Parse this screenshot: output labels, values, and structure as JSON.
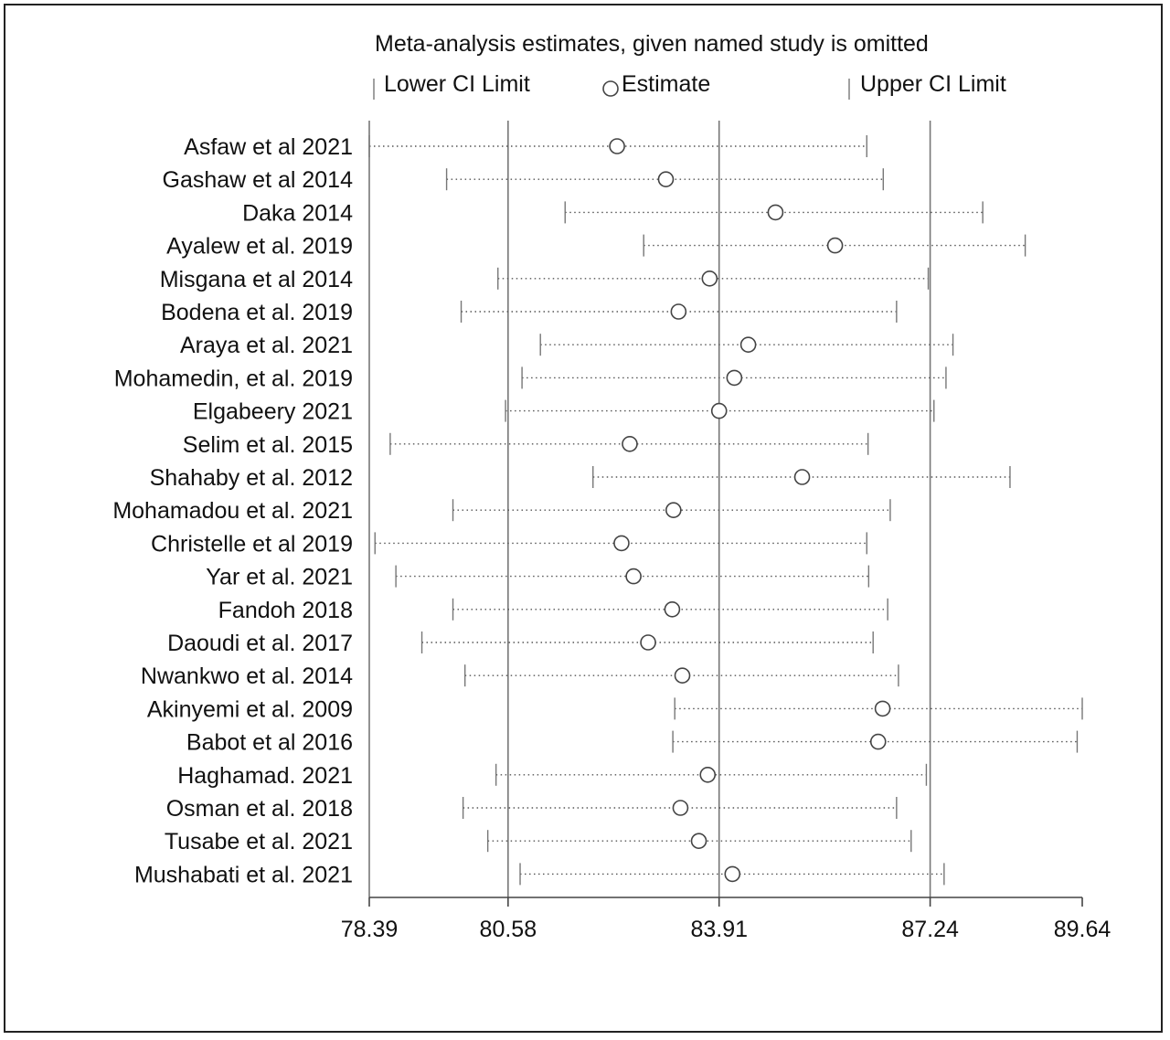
{
  "chart_data": {
    "type": "scatter",
    "title": "Meta-analysis estimates, given named study is omitted",
    "legend": {
      "lower": "Lower CI Limit",
      "estimate": "Estimate",
      "upper": "Upper CI Limit",
      "placement": "top"
    },
    "xlim": [
      78.39,
      89.64
    ],
    "ticks": [
      {
        "value": 78.39,
        "label": "78.39"
      },
      {
        "value": 80.58,
        "label": "80.58"
      },
      {
        "value": 83.91,
        "label": "83.91"
      },
      {
        "value": 87.24,
        "label": "87.24"
      },
      {
        "value": 89.64,
        "label": "89.64"
      }
    ],
    "reference_lines": [
      80.58,
      83.91,
      87.24
    ],
    "grid": false,
    "studies": [
      {
        "label": "Asfaw et al 2021",
        "lower": 78.39,
        "estimate": 82.3,
        "upper": 86.24
      },
      {
        "label": "Gashaw et al 2014",
        "lower": 79.61,
        "estimate": 83.07,
        "upper": 86.5
      },
      {
        "label": "Daka 2014",
        "lower": 81.48,
        "estimate": 84.8,
        "upper": 88.07
      },
      {
        "label": "Ayalew et al.  2019",
        "lower": 82.72,
        "estimate": 85.74,
        "upper": 88.74
      },
      {
        "label": "Misgana et al  2014",
        "lower": 80.42,
        "estimate": 83.76,
        "upper": 87.21
      },
      {
        "label": "Bodena et al. 2019",
        "lower": 79.84,
        "estimate": 83.27,
        "upper": 86.71
      },
      {
        "label": "Araya et al. 2021",
        "lower": 81.09,
        "estimate": 84.37,
        "upper": 87.6
      },
      {
        "label": "Mohamedin, et al. 2019",
        "lower": 80.8,
        "estimate": 84.15,
        "upper": 87.49
      },
      {
        "label": "Elgabeery 2021",
        "lower": 80.54,
        "estimate": 83.91,
        "upper": 87.3
      },
      {
        "label": "Selim et al. 2015",
        "lower": 78.72,
        "estimate": 82.5,
        "upper": 86.26
      },
      {
        "label": "Shahaby et al. 2012",
        "lower": 81.92,
        "estimate": 85.22,
        "upper": 88.5
      },
      {
        "label": "Mohamadou et al. 2021",
        "lower": 79.71,
        "estimate": 83.19,
        "upper": 86.61
      },
      {
        "label": "Christelle et al 2019",
        "lower": 78.48,
        "estimate": 82.37,
        "upper": 86.24
      },
      {
        "label": "Yar et al. 2021",
        "lower": 78.81,
        "estimate": 82.56,
        "upper": 86.27
      },
      {
        "label": "Fandoh 2018",
        "lower": 79.71,
        "estimate": 83.17,
        "upper": 86.57
      },
      {
        "label": "Daoudi et al. 2017",
        "lower": 79.22,
        "estimate": 82.79,
        "upper": 86.34
      },
      {
        "label": "Nwankwo et al. 2014",
        "lower": 79.9,
        "estimate": 83.33,
        "upper": 86.74
      },
      {
        "label": "Akinyemi et al. 2009",
        "lower": 83.21,
        "estimate": 86.49,
        "upper": 89.64
      },
      {
        "label": "Babot et al 2016",
        "lower": 83.18,
        "estimate": 86.42,
        "upper": 89.56
      },
      {
        "label": "Haghamad. 2021",
        "lower": 80.39,
        "estimate": 83.73,
        "upper": 87.18
      },
      {
        "label": "Osman et al. 2018",
        "lower": 79.87,
        "estimate": 83.3,
        "upper": 86.71
      },
      {
        "label": "Tusabe et al. 2021",
        "lower": 80.26,
        "estimate": 83.59,
        "upper": 86.94
      },
      {
        "label": "Mushabati et al. 2021",
        "lower": 80.77,
        "estimate": 84.12,
        "upper": 87.46
      }
    ]
  }
}
